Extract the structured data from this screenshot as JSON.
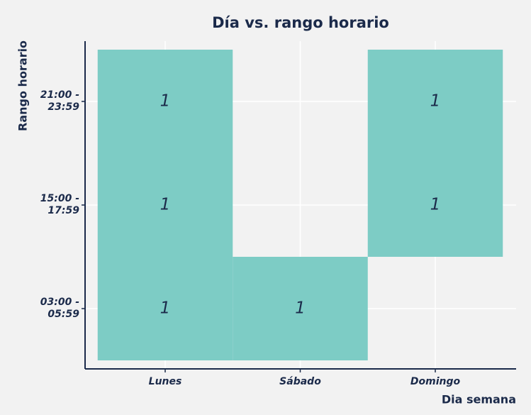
{
  "chart_data": {
    "type": "heatmap",
    "title": "Día vs. rango horario",
    "x_label": "Dia semana",
    "y_label": "Rango horario",
    "x_categories": [
      "Lunes",
      "Sábado",
      "Domingo"
    ],
    "y_categories": [
      "03:00 - 05:59",
      "15:00 - 17:59",
      "21:00 - 23:59"
    ],
    "values": [
      [
        1,
        1,
        null
      ],
      [
        1,
        null,
        1
      ],
      [
        1,
        null,
        1
      ]
    ],
    "color": "#7dccc5",
    "grid": true
  }
}
